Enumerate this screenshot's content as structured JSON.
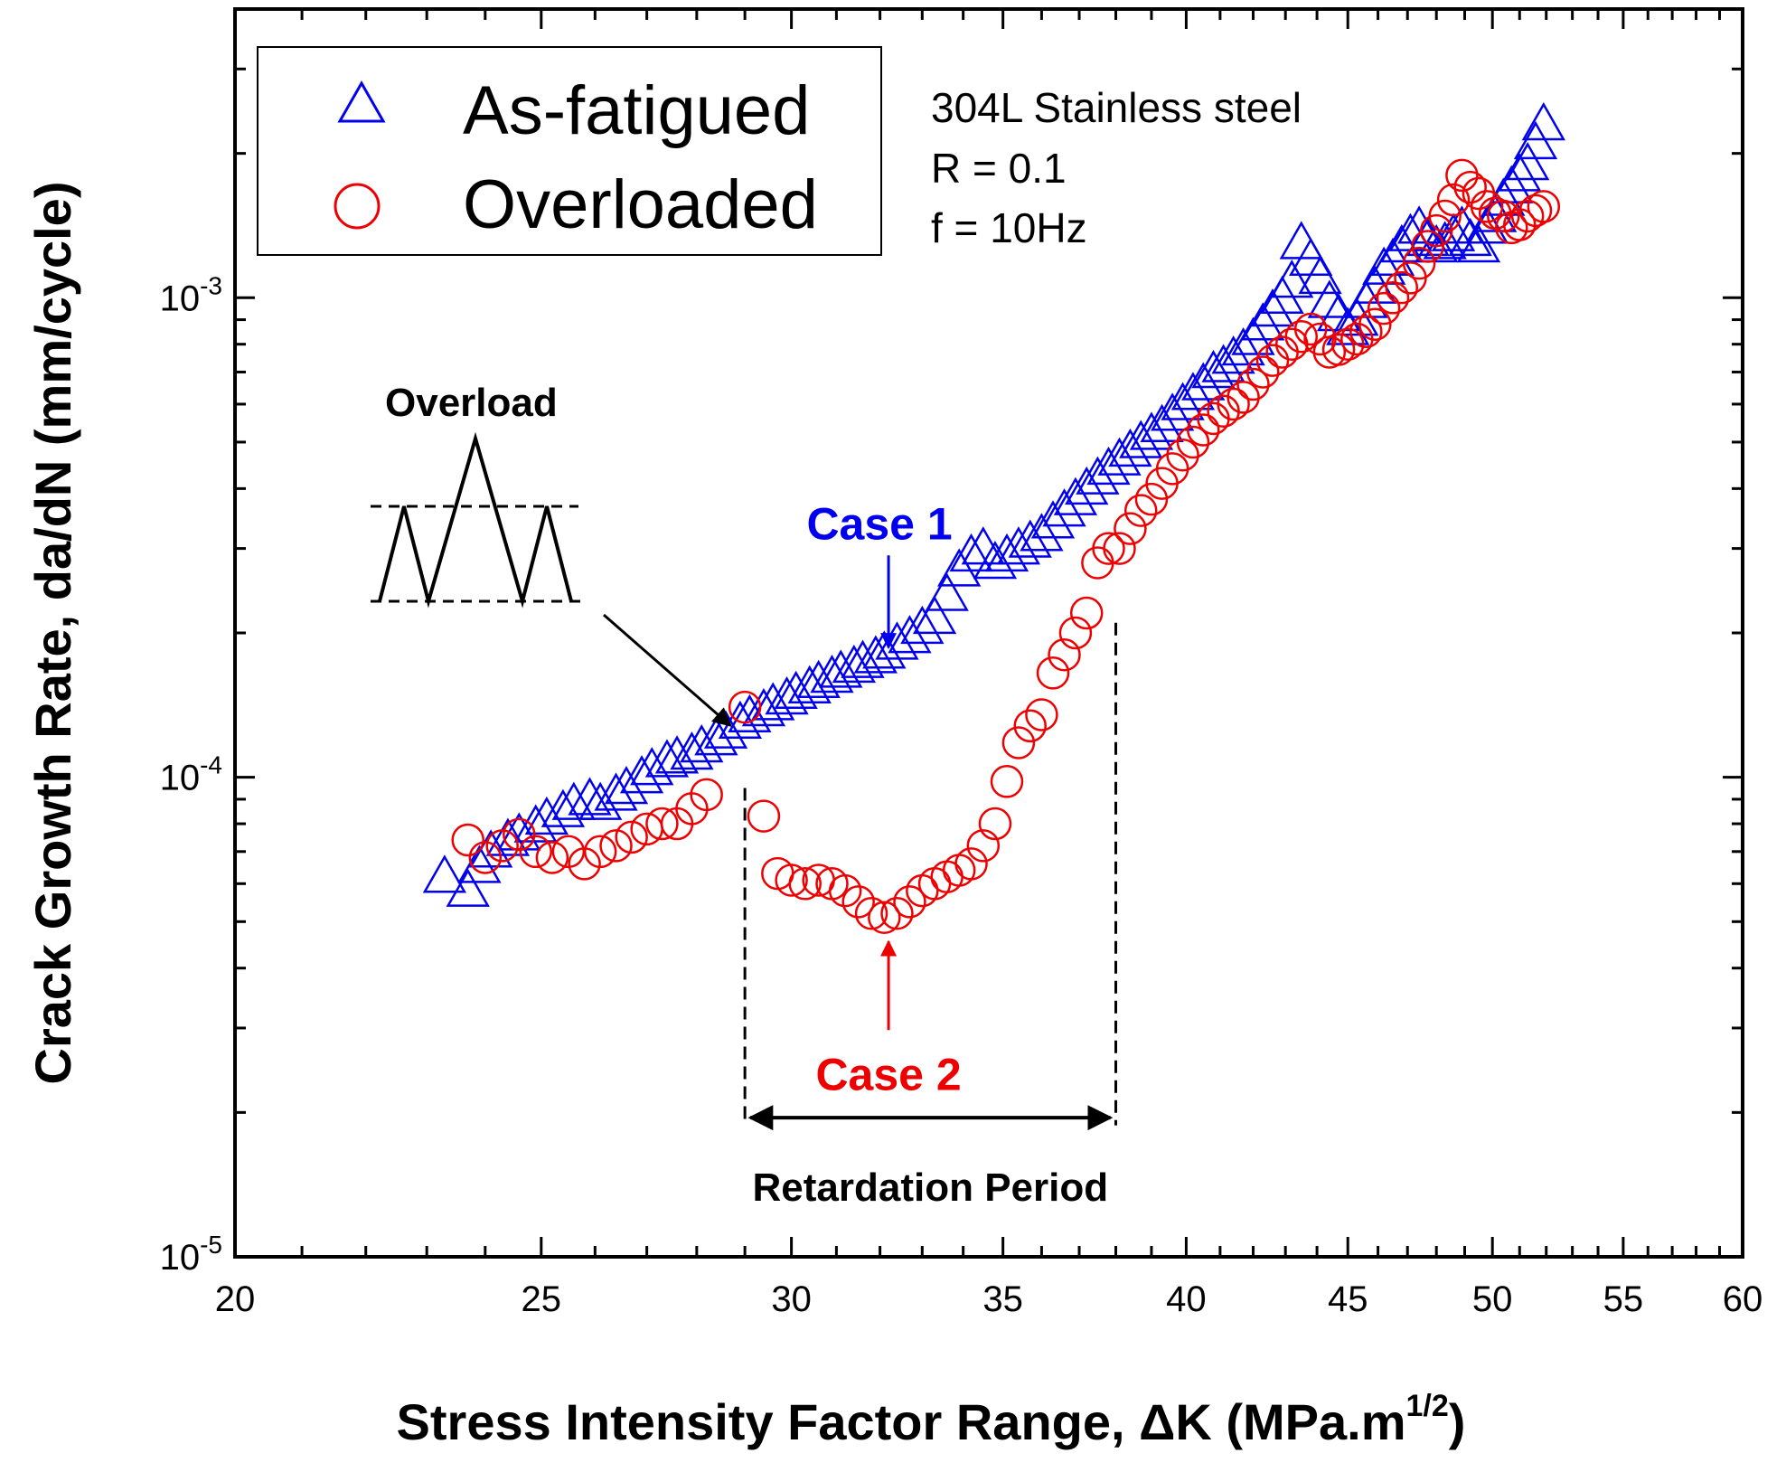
{
  "chart_data": {
    "type": "scatter",
    "title": "",
    "xlabel": "Stress Intensity Factor Range, ΔK (MPa.m",
    "xlabel_sup": "1/2",
    "xlabel_tail": ")",
    "ylabel": "Crack Growth Rate, da/dN (mm/cycle)",
    "xlim": [
      20,
      60
    ],
    "x_scale": "log",
    "ylim": [
      1e-05,
      0.004
    ],
    "y_scale": "log",
    "x_ticks": [
      "20",
      "25",
      "30",
      "35",
      "40",
      "45",
      "50",
      "55",
      "60"
    ],
    "y_ticks": [
      {
        "base": "10",
        "exp": "-5",
        "value": 1e-05
      },
      {
        "base": "10",
        "exp": "-4",
        "value": 0.0001
      },
      {
        "base": "10",
        "exp": "-3",
        "value": 0.001
      }
    ],
    "legend": {
      "position": "top-left",
      "entries": [
        "As-fatigued",
        "Overloaded"
      ]
    },
    "conditions": [
      "304L Stainless steel",
      "R = 0.1",
      "f = 10Hz"
    ],
    "annotations": {
      "overload": "Overload",
      "case1": "Case 1",
      "case2": "Case 2",
      "retardation": "Retardation Period",
      "retardation_range": [
        29.0,
        38.0
      ],
      "case1_point": [
        32.2,
        0.00018
      ],
      "case2_point": [
        32.2,
        5e-05
      ],
      "overload_point": [
        29.0,
        0.000135
      ]
    },
    "colors": {
      "as_fatigued": "#0000ee",
      "overloaded": "#ee0000"
    },
    "series": [
      {
        "name": "As-fatigued",
        "marker": "triangle",
        "x": [
          23.3,
          23.7,
          23.9,
          24.1,
          24.4,
          24.6,
          24.9,
          25.1,
          25.4,
          25.6,
          25.9,
          26.1,
          26.4,
          26.6,
          26.9,
          27.1,
          27.4,
          27.6,
          27.9,
          28.1,
          28.4,
          28.6,
          28.9,
          29.1,
          29.4,
          29.6,
          29.9,
          30.1,
          30.4,
          30.6,
          30.9,
          31.1,
          31.4,
          31.6,
          31.9,
          32.1,
          32.4,
          32.7,
          33.0,
          33.3,
          33.6,
          33.9,
          34.2,
          34.5,
          34.8,
          35.1,
          35.4,
          35.7,
          36.0,
          36.3,
          36.6,
          36.9,
          37.2,
          37.5,
          37.8,
          38.1,
          38.4,
          38.7,
          39.0,
          39.3,
          39.6,
          39.9,
          40.2,
          40.5,
          40.8,
          41.1,
          41.4,
          41.7,
          42.0,
          42.3,
          42.6,
          42.9,
          43.2,
          43.5,
          43.8,
          44.1,
          44.4,
          44.7,
          45.0,
          45.3,
          45.6,
          45.9,
          46.2,
          46.5,
          46.8,
          47.1,
          47.4,
          47.7,
          48.0,
          48.3,
          48.6,
          48.9,
          49.2,
          49.5,
          49.8,
          50.1,
          50.4,
          50.7,
          51.0,
          51.3,
          51.6,
          51.9
        ],
        "y": [
          6.2e-05,
          5.8e-05,
          6.5e-05,
          7e-05,
          7.4e-05,
          7.6e-05,
          7.9e-05,
          8.2e-05,
          8.5e-05,
          8.8e-05,
          9e-05,
          8.8e-05,
          9.2e-05,
          9.5e-05,
          0.0001,
          0.000104,
          0.000108,
          0.00011,
          0.000112,
          0.000116,
          0.00012,
          0.000124,
          0.00013,
          0.000134,
          0.000138,
          0.000142,
          0.000146,
          0.00015,
          0.000154,
          0.000158,
          0.000162,
          0.000166,
          0.00017,
          0.000174,
          0.000178,
          0.000182,
          0.00019,
          0.000196,
          0.000205,
          0.000215,
          0.00024,
          0.00027,
          0.00029,
          0.0003,
          0.00028,
          0.00029,
          0.0003,
          0.00031,
          0.00032,
          0.00034,
          0.00036,
          0.00038,
          0.0004,
          0.00042,
          0.00044,
          0.00046,
          0.00048,
          0.0005,
          0.00052,
          0.00054,
          0.00057,
          0.0006,
          0.00063,
          0.00066,
          0.0007,
          0.00072,
          0.00075,
          0.00078,
          0.00082,
          0.00088,
          0.00094,
          0.001,
          0.00108,
          0.0013,
          0.0012,
          0.0011,
          0.00098,
          0.00092,
          0.00086,
          0.0009,
          0.00098,
          0.00105,
          0.00115,
          0.0012,
          0.00128,
          0.00135,
          0.0014,
          0.00132,
          0.00128,
          0.0013,
          0.00135,
          0.0014,
          0.00132,
          0.00128,
          0.0014,
          0.00148,
          0.0016,
          0.0017,
          0.0018,
          0.0019,
          0.0021,
          0.0023
        ]
      },
      {
        "name": "Overloaded",
        "marker": "circle",
        "x": [
          23.7,
          24.0,
          24.3,
          24.6,
          24.9,
          25.2,
          25.5,
          25.8,
          26.1,
          26.4,
          26.7,
          27.0,
          27.3,
          27.6,
          27.9,
          28.2,
          29.0,
          29.4,
          29.7,
          30.0,
          30.3,
          30.6,
          30.9,
          31.2,
          31.5,
          31.8,
          32.1,
          32.4,
          32.7,
          33.0,
          33.3,
          33.6,
          33.9,
          34.2,
          34.5,
          34.8,
          35.1,
          35.4,
          35.7,
          36.0,
          36.3,
          36.6,
          36.9,
          37.2,
          37.5,
          37.8,
          38.1,
          38.4,
          38.7,
          39.0,
          39.3,
          39.6,
          39.9,
          40.2,
          40.5,
          40.8,
          41.1,
          41.4,
          41.7,
          42.0,
          42.3,
          42.6,
          42.9,
          43.2,
          43.5,
          43.8,
          44.1,
          44.4,
          44.7,
          45.0,
          45.3,
          45.6,
          45.9,
          46.2,
          46.5,
          46.8,
          47.1,
          47.4,
          47.7,
          48.0,
          48.3,
          48.6,
          48.9,
          49.2,
          49.5,
          49.8,
          50.1,
          50.4,
          50.7,
          51.0,
          51.3,
          51.6,
          51.9
        ],
        "y": [
          7.4e-05,
          6.8e-05,
          7.2e-05,
          7.6e-05,
          7e-05,
          6.8e-05,
          7e-05,
          6.6e-05,
          7e-05,
          7.2e-05,
          7.5e-05,
          7.8e-05,
          8e-05,
          8e-05,
          8.6e-05,
          9.2e-05,
          0.00014,
          8.3e-05,
          6.3e-05,
          6.1e-05,
          6e-05,
          6.1e-05,
          6e-05,
          5.8e-05,
          5.5e-05,
          5.2e-05,
          5.1e-05,
          5.2e-05,
          5.5e-05,
          5.8e-05,
          6e-05,
          6.2e-05,
          6.4e-05,
          6.6e-05,
          7.2e-05,
          8e-05,
          9.8e-05,
          0.000118,
          0.000128,
          0.000135,
          0.000165,
          0.00018,
          0.0002,
          0.00022,
          0.00028,
          0.0003,
          0.0003,
          0.00033,
          0.00036,
          0.00038,
          0.00041,
          0.00044,
          0.00047,
          0.0005,
          0.00053,
          0.00056,
          0.00058,
          0.0006,
          0.00062,
          0.00066,
          0.0007,
          0.00074,
          0.00077,
          0.0008,
          0.00083,
          0.00086,
          0.00082,
          0.00077,
          0.00078,
          0.0008,
          0.00082,
          0.00085,
          0.00088,
          0.00095,
          0.001,
          0.00105,
          0.0011,
          0.00118,
          0.00128,
          0.00138,
          0.00148,
          0.0016,
          0.0018,
          0.0017,
          0.00165,
          0.00155,
          0.0015,
          0.00148,
          0.0014,
          0.00142,
          0.00148,
          0.00152,
          0.00155
        ]
      }
    ]
  }
}
